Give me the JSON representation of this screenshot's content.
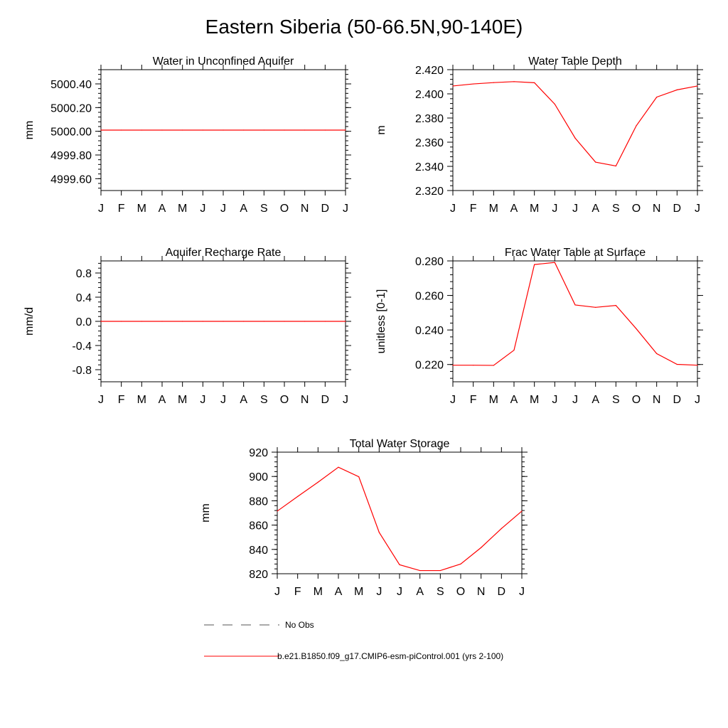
{
  "title": "Eastern Siberia (50-66.5N,90-140E)",
  "colors": {
    "model_line": "#ff0000",
    "obs_line": "#555555",
    "axis": "#000000"
  },
  "months": [
    "J",
    "F",
    "M",
    "A",
    "M",
    "J",
    "J",
    "A",
    "S",
    "O",
    "N",
    "D",
    "J"
  ],
  "chart_data": [
    {
      "type": "line",
      "title": "Water in Unconfined Aquifer",
      "ylabel": "mm",
      "ylim": [
        4999.5,
        5000.52
      ],
      "yticks": [
        4999.6,
        4999.8,
        5000.0,
        5000.2,
        5000.4
      ],
      "ytick_labels": [
        "4999.60",
        "4999.80",
        "5000.00",
        "5000.20",
        "5000.40"
      ],
      "categories": [
        "J",
        "F",
        "M",
        "A",
        "M",
        "J",
        "J",
        "A",
        "S",
        "O",
        "N",
        "D",
        "J"
      ],
      "series": [
        {
          "name": "model",
          "values": [
            5000.01,
            5000.01,
            5000.01,
            5000.01,
            5000.01,
            5000.01,
            5000.01,
            5000.01,
            5000.01,
            5000.01,
            5000.01,
            5000.01,
            5000.01
          ]
        }
      ]
    },
    {
      "type": "line",
      "title": "Water Table Depth",
      "ylabel": "m",
      "ylim": [
        2.32,
        2.42
      ],
      "yticks": [
        2.32,
        2.34,
        2.36,
        2.38,
        2.4,
        2.42
      ],
      "ytick_labels": [
        "2.320",
        "2.340",
        "2.360",
        "2.380",
        "2.400",
        "2.420"
      ],
      "categories": [
        "J",
        "F",
        "M",
        "A",
        "M",
        "J",
        "J",
        "A",
        "S",
        "O",
        "N",
        "D",
        "J"
      ],
      "series": [
        {
          "name": "model",
          "values": [
            2.4065,
            2.4082,
            2.4093,
            2.4101,
            2.4092,
            2.3915,
            2.3634,
            2.3435,
            2.3403,
            2.3736,
            2.3973,
            2.4033,
            2.4065
          ]
        }
      ]
    },
    {
      "type": "line",
      "title": "Aquifer Recharge Rate",
      "ylabel": "mm/d",
      "ylim": [
        -1.0,
        1.0
      ],
      "yticks": [
        -0.8,
        -0.4,
        0.0,
        0.4,
        0.8
      ],
      "ytick_labels": [
        "-0.8",
        "-0.4",
        "0.0",
        "0.4",
        "0.8"
      ],
      "categories": [
        "J",
        "F",
        "M",
        "A",
        "M",
        "J",
        "J",
        "A",
        "S",
        "O",
        "N",
        "D",
        "J"
      ],
      "series": [
        {
          "name": "model",
          "values": [
            0,
            0,
            0,
            0,
            0,
            0,
            0,
            0,
            0,
            0,
            0,
            0,
            0
          ]
        }
      ]
    },
    {
      "type": "line",
      "title": "Frac Water Table at Surface",
      "ylabel": "unitless [0-1]",
      "ylim": [
        0.21,
        0.28
      ],
      "yticks": [
        0.22,
        0.24,
        0.26,
        0.28
      ],
      "ytick_labels": [
        "0.220",
        "0.240",
        "0.260",
        "0.280"
      ],
      "categories": [
        "J",
        "F",
        "M",
        "A",
        "M",
        "J",
        "J",
        "A",
        "S",
        "O",
        "N",
        "D",
        "J"
      ],
      "series": [
        {
          "name": "model",
          "values": [
            0.2196,
            0.2196,
            0.2195,
            0.2283,
            0.2779,
            0.2791,
            0.2545,
            0.2531,
            0.2542,
            0.2407,
            0.2263,
            0.2201,
            0.2196
          ]
        }
      ]
    },
    {
      "type": "line",
      "title": "Total Water Storage",
      "ylabel": "mm",
      "ylim": [
        820,
        920
      ],
      "yticks": [
        820,
        840,
        860,
        880,
        900,
        920
      ],
      "ytick_labels": [
        "820",
        "840",
        "860",
        "880",
        "900",
        "920"
      ],
      "categories": [
        "J",
        "F",
        "M",
        "A",
        "M",
        "J",
        "J",
        "A",
        "S",
        "O",
        "N",
        "D",
        "J"
      ],
      "series": [
        {
          "name": "model",
          "values": [
            871.5,
            883.5,
            895.3,
            907.6,
            899.8,
            854.0,
            827.4,
            822.6,
            822.6,
            828.0,
            841.5,
            857.2,
            871.5
          ]
        }
      ]
    }
  ],
  "legend": {
    "obs_label": "No Obs",
    "model_label": "b.e21.B1850.f09_g17.CMIP6-esm-piControl.001 (yrs 2-100)"
  }
}
